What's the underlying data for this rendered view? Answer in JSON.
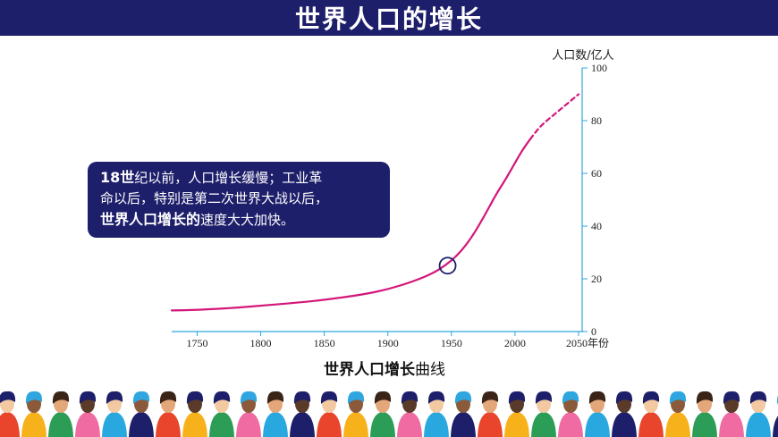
{
  "title": "世界人口的增长",
  "callout": {
    "line1_bold": "18世",
    "line1_rest": "纪以前，人口增长缓慢；工业革",
    "line2": "命以后，特别是第二次世界大战以后，",
    "line3_bold": "世界人口增长的",
    "line3_rest": "速度大大加快。"
  },
  "caption": {
    "bold": "世界人口增长",
    "rest": "曲线"
  },
  "colors": {
    "title_bg": "#1e1f6b",
    "curve": "#d4167a",
    "axis": "#2fa6e0",
    "marker": "#1e1f6b"
  },
  "chart_data": {
    "type": "line",
    "ylabel": "人口数/亿人",
    "xlabel": "年份",
    "xlim": [
      1730,
      2050
    ],
    "ylim": [
      0,
      100
    ],
    "x_ticks": [
      1750,
      1800,
      1850,
      1900,
      1950,
      2000,
      2050
    ],
    "x_tick_labels": [
      "1750",
      "1800",
      "1850",
      "1900",
      "1950",
      "2000",
      "2050年份"
    ],
    "y_ticks": [
      0,
      20,
      40,
      60,
      80,
      100
    ],
    "series": [
      {
        "style": "solid",
        "x": [
          1730,
          1750,
          1780,
          1800,
          1830,
          1850,
          1880,
          1900,
          1920,
          1935,
          1945,
          1955,
          1965,
          1975,
          1985,
          1993,
          2000,
          2006,
          2012
        ],
        "values": [
          8,
          8.2,
          9,
          9.8,
          11,
          12,
          14,
          16,
          19,
          22,
          25,
          29,
          35,
          43,
          52,
          58,
          64,
          69,
          73
        ]
      },
      {
        "style": "dashed",
        "x": [
          2012,
          2020,
          2030,
          2040,
          2050
        ],
        "values": [
          73,
          78,
          82,
          86,
          90
        ]
      }
    ],
    "marker": {
      "x": 1947,
      "y": 25
    }
  },
  "people_colors": [
    "#e8452c",
    "#f7b21b",
    "#2b9d56",
    "#f06ba2",
    "#29a8df",
    "#1e1f6b"
  ]
}
